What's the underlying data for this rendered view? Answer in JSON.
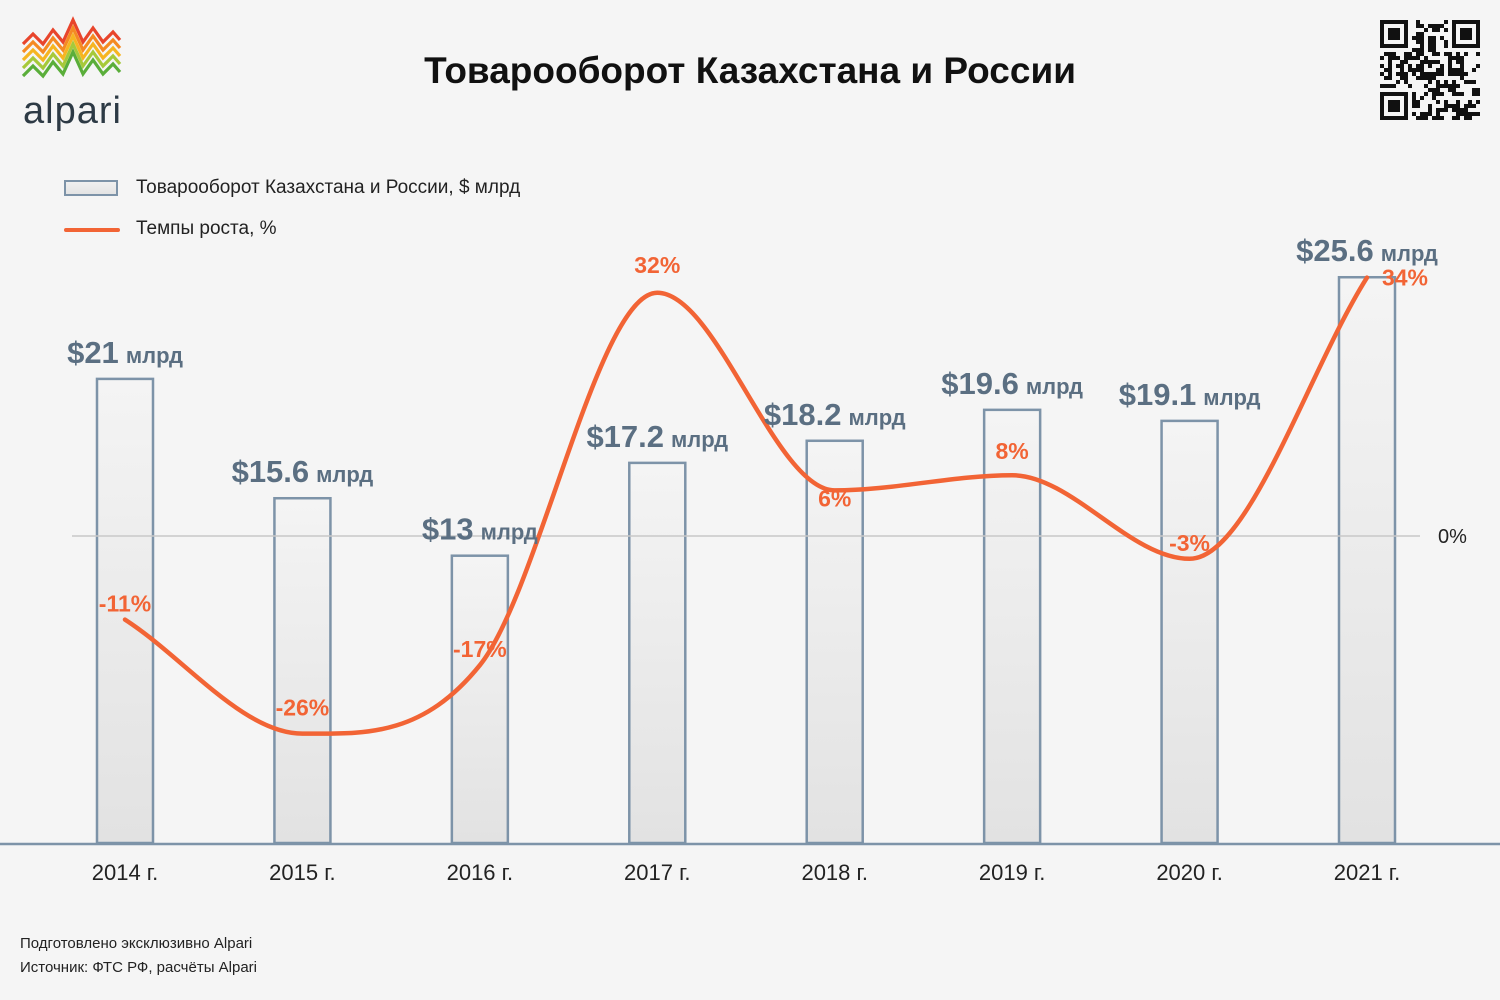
{
  "brand": {
    "name": "alpari"
  },
  "title": "Товарооборот Казахстана и России",
  "legend": {
    "bars_label": "Товарооборот Казахстана и России, $ млрд",
    "line_label": "Темпы роста, %"
  },
  "colors": {
    "bar_border": "#7d93a8",
    "bar_fill_top": "#f4f4f4",
    "bar_fill_bottom": "#e2e2e2",
    "line": "#f26435",
    "value_label": "#5b6f82",
    "baseline": "#7d93a8",
    "zero_line": "#c8c8c8"
  },
  "chart_data": {
    "type": "bar",
    "categories": [
      "2014 г.",
      "2015 г.",
      "2016 г.",
      "2017 г.",
      "2018 г.",
      "2019 г.",
      "2020 г.",
      "2021 г."
    ],
    "series": [
      {
        "name": "Товарооборот Казахстана и России, $ млрд",
        "type": "bar",
        "values": [
          21,
          15.6,
          13,
          17.2,
          18.2,
          19.6,
          19.1,
          25.6
        ],
        "labels": [
          "$21",
          "$15.6",
          "$13",
          "$17.2",
          "$18.2",
          "$19.6",
          "$19.1",
          "$25.6"
        ],
        "unit_label": "млрд"
      },
      {
        "name": "Темпы роста, %",
        "type": "line",
        "smooth": true,
        "values": [
          -11,
          -26,
          -17,
          32,
          6,
          8,
          -3,
          34
        ],
        "labels": [
          "-11%",
          "-26%",
          "-17%",
          "32%",
          "6%",
          "8%",
          "-3%",
          "34%"
        ]
      }
    ],
    "secondary_axis_ticks": [
      "0%"
    ],
    "legend_position": "top-left"
  },
  "footer": {
    "line1": "Подготовлено эксклюзивно Alpari",
    "line2": "Источник: ФТС РФ, расчёты Alpari"
  }
}
